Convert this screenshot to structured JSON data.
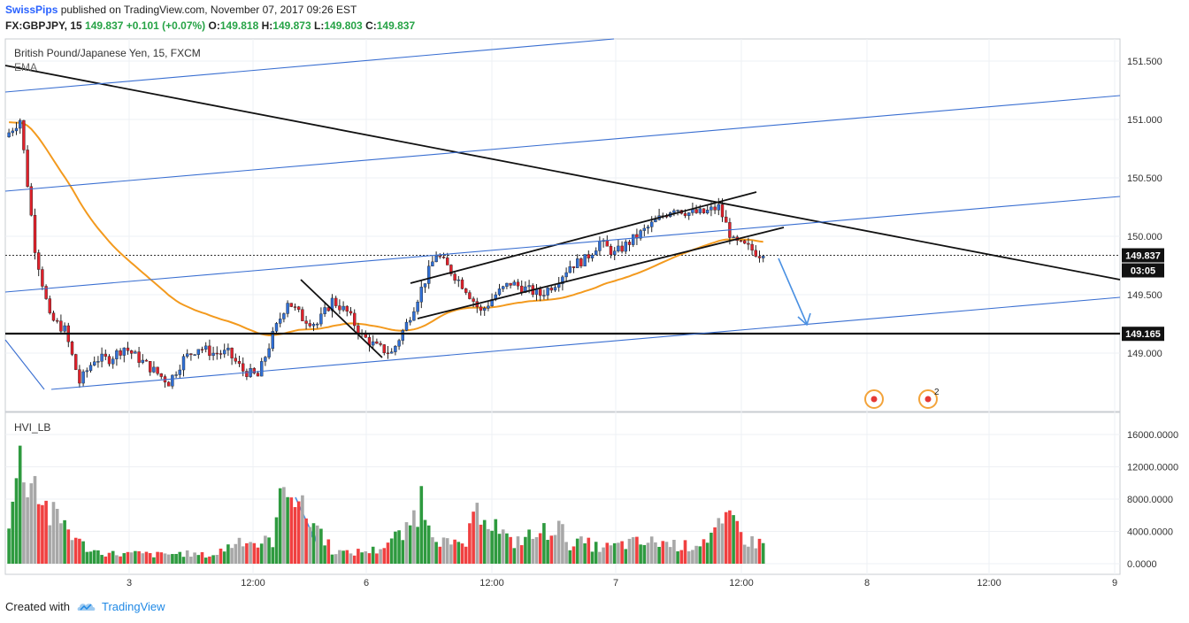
{
  "header": {
    "author": "SwissPips",
    "published_text": " published on TradingView.com, November 07, 2017 09:26 EST",
    "symbol": "FX:GBPJPY, 15",
    "last": "149.837",
    "change": "+0.101 (+0.07%)",
    "o_label": "O:",
    "o": "149.818",
    "h_label": "H:",
    "h": "149.873",
    "l_label": "L:",
    "l": "149.803",
    "c_label": "C:",
    "c": "149.837"
  },
  "pane": {
    "title": "British Pound/Japanese Yen, 15, FXCM",
    "indicator": "EMA",
    "volume_title": "HVI_LB"
  },
  "footer": {
    "created": "Created with",
    "brand": "TradingView"
  },
  "colors": {
    "up": "#2f6fd6",
    "down": "#e0212b",
    "ema": "#f39a1e",
    "trend": "#111111",
    "channel": "#3a6fd1",
    "vol_up": "#2e9a3f",
    "vol_down": "#f04040",
    "vol_neutral": "#a8a8a8",
    "price_tag": "#111111",
    "grid": "#eef0f4"
  },
  "chart_data": {
    "type": "candlestick",
    "title": "British Pound/Japanese Yen, 15, FXCM",
    "price_axis": {
      "ticks": [
        "151.500",
        "151.000",
        "150.500",
        "150.000",
        "149.500",
        "149.000"
      ],
      "range": [
        148.5,
        151.7
      ],
      "tags": [
        {
          "label": "149.837",
          "kind": "last"
        },
        {
          "label": "03:05",
          "kind": "countdown"
        },
        {
          "label": "149.165",
          "kind": "level"
        }
      ]
    },
    "time_axis": {
      "ticks": [
        "3",
        "12:00",
        "6",
        "12:00",
        "7",
        "12:00",
        "8",
        "12:00",
        "9"
      ]
    },
    "price_path": [
      [
        0,
        150.85
      ],
      [
        1,
        151.0
      ],
      [
        2,
        149.9
      ],
      [
        3,
        149.3
      ],
      [
        4,
        149.2
      ],
      [
        5,
        148.75
      ],
      [
        6,
        148.95
      ],
      [
        7,
        148.95
      ],
      [
        8,
        149.05
      ],
      [
        9,
        148.95
      ],
      [
        10,
        148.85
      ],
      [
        11,
        148.75
      ],
      [
        12,
        148.95
      ],
      [
        13,
        149.05
      ],
      [
        14,
        149.0
      ],
      [
        15,
        149.0
      ],
      [
        16,
        148.85
      ],
      [
        17,
        148.8
      ],
      [
        18,
        149.15
      ],
      [
        19,
        149.45
      ],
      [
        20,
        149.3
      ],
      [
        21,
        149.25
      ],
      [
        22,
        149.45
      ],
      [
        23,
        149.35
      ],
      [
        24,
        149.15
      ],
      [
        25,
        149.05
      ],
      [
        26,
        149.0
      ],
      [
        27,
        149.25
      ],
      [
        28,
        149.55
      ],
      [
        29,
        149.85
      ],
      [
        30,
        149.7
      ],
      [
        31,
        149.55
      ],
      [
        32,
        149.35
      ],
      [
        33,
        149.5
      ],
      [
        34,
        149.6
      ],
      [
        35,
        149.55
      ],
      [
        36,
        149.5
      ],
      [
        37,
        149.6
      ],
      [
        38,
        149.75
      ],
      [
        39,
        149.8
      ],
      [
        40,
        149.95
      ],
      [
        41,
        149.85
      ],
      [
        42,
        149.95
      ],
      [
        43,
        150.05
      ],
      [
        44,
        150.15
      ],
      [
        45,
        150.25
      ],
      [
        46,
        150.2
      ],
      [
        47,
        150.2
      ],
      [
        48,
        150.25
      ],
      [
        49,
        149.95
      ],
      [
        50,
        149.9
      ],
      [
        51,
        149.83
      ]
    ],
    "volume_axis": {
      "ticks": [
        "16000.0000",
        "12000.0000",
        "8000.0000",
        "4000.0000",
        "0.0000"
      ],
      "range": [
        0,
        17500
      ]
    },
    "volume_peaks": [
      [
        0,
        4500
      ],
      [
        1,
        14500
      ],
      [
        2,
        12000
      ],
      [
        3,
        7000
      ],
      [
        4,
        6000
      ],
      [
        5,
        3000
      ],
      [
        6,
        1800
      ],
      [
        7,
        1500
      ],
      [
        8,
        1400
      ],
      [
        9,
        1500
      ],
      [
        10,
        1300
      ],
      [
        11,
        1400
      ],
      [
        12,
        1500
      ],
      [
        13,
        1300
      ],
      [
        14,
        1200
      ],
      [
        15,
        2500
      ],
      [
        16,
        3800
      ],
      [
        17,
        2800
      ],
      [
        18,
        3500
      ],
      [
        19,
        13500
      ],
      [
        20,
        7500
      ],
      [
        21,
        5500
      ],
      [
        22,
        2000
      ],
      [
        23,
        1500
      ],
      [
        24,
        1800
      ],
      [
        25,
        2000
      ],
      [
        26,
        3500
      ],
      [
        27,
        4500
      ],
      [
        28,
        9500
      ],
      [
        29,
        4200
      ],
      [
        30,
        2500
      ],
      [
        31,
        3000
      ],
      [
        32,
        8500
      ],
      [
        33,
        5500
      ],
      [
        34,
        3000
      ],
      [
        35,
        3800
      ],
      [
        36,
        4200
      ],
      [
        37,
        5800
      ],
      [
        38,
        3000
      ],
      [
        39,
        3000
      ],
      [
        40,
        2300
      ],
      [
        41,
        2500
      ],
      [
        42,
        3000
      ],
      [
        43,
        3000
      ],
      [
        44,
        3200
      ],
      [
        45,
        2800
      ],
      [
        46,
        2500
      ],
      [
        47,
        3500
      ],
      [
        48,
        5000
      ],
      [
        49,
        6200
      ],
      [
        50,
        3200
      ],
      [
        51,
        3000
      ]
    ],
    "event_markers": [
      {
        "label": ""
      },
      {
        "label": "2"
      }
    ]
  }
}
